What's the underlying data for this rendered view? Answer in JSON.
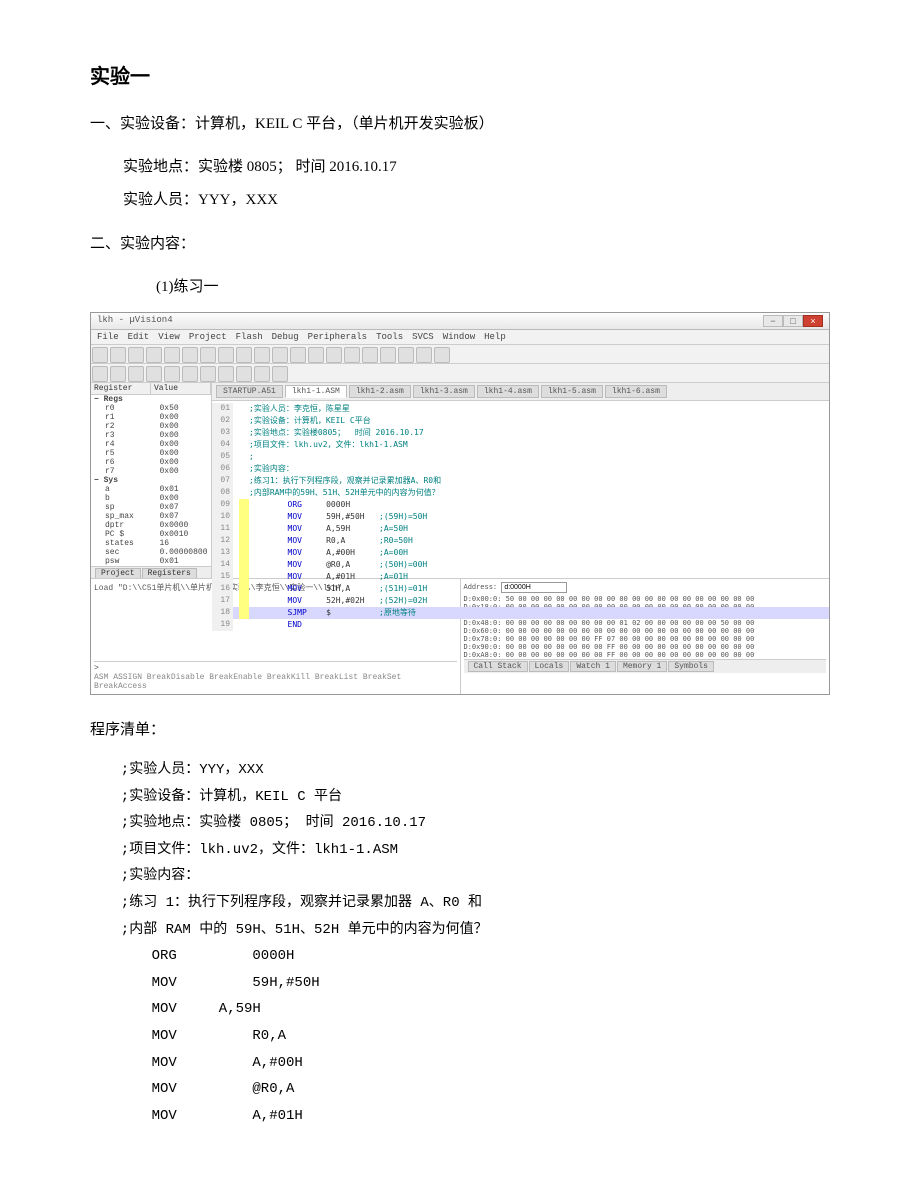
{
  "doc": {
    "title": "实验一",
    "sec1_label": "一、实验设备：",
    "equip": "计算机，KEIL C 平台，（单片机开发实验板）",
    "loc_label": "实验地点：",
    "loc": "实验楼 0805；  时间 2016.10.17",
    "people_label": "实验人员：",
    "people": "YYY，XXX",
    "sec2_label": "二、实验内容：",
    "ex1": "(1)练习一",
    "listing_title": "程序清单：",
    "l1": ";实验人员：YYY，XXX",
    "l2": ";实验设备：计算机，KEIL C 平台",
    "l3": ";实验地点：实验楼 0805；  时间 2016.10.17",
    "l4": ";项目文件：lkh.uv2，文件：lkh1-1.ASM",
    "l5": ";实验内容：",
    "l6": ";练习 1：执行下列程序段，观察并记录累加器 A、R0 和",
    "l7": ";内部 RAM 中的 59H、51H、52H 单元中的内容为何值？",
    "asm": [
      "ORG         0000H",
      "MOV         59H,#50H",
      "MOV     A,59H",
      "MOV         R0,A",
      "MOV         A,#00H",
      "MOV         @R0,A",
      "MOV         A,#01H"
    ]
  },
  "ide": {
    "title": "lkh - µVision4",
    "menus": [
      "File",
      "Edit",
      "View",
      "Project",
      "Flash",
      "Debug",
      "Peripherals",
      "Tools",
      "SVCS",
      "Window",
      "Help"
    ],
    "reg_hdr": [
      "Register",
      "Value"
    ],
    "regs": [
      [
        "r0",
        "0x50"
      ],
      [
        "r1",
        "0x00"
      ],
      [
        "r2",
        "0x00"
      ],
      [
        "r3",
        "0x00"
      ],
      [
        "r4",
        "0x00"
      ],
      [
        "r5",
        "0x00"
      ],
      [
        "r6",
        "0x00"
      ],
      [
        "r7",
        "0x00"
      ]
    ],
    "sys": [
      [
        "a",
        "0x01"
      ],
      [
        "b",
        "0x00"
      ],
      [
        "sp",
        "0x07"
      ],
      [
        "sp_max",
        "0x07"
      ],
      [
        "dptr",
        "0x0000"
      ],
      [
        "PC $",
        "0x0010"
      ],
      [
        "states",
        "16"
      ],
      [
        "sec",
        "0.00000800"
      ],
      [
        "psw",
        "0x01"
      ]
    ],
    "tabs": [
      "STARTUP.A51",
      "lkh1-1.ASM",
      "lkh1-2.asm",
      "lkh1-3.asm",
      "lkh1-4.asm",
      "lkh1-5.asm",
      "lkh1-6.asm"
    ],
    "code": [
      {
        "n": "01",
        "t": ";实验人员：李克恒，陈星星",
        "c": 1
      },
      {
        "n": "02",
        "t": ";实验设备：计算机，KEIL C平台",
        "c": 1
      },
      {
        "n": "03",
        "t": ";实验地点：实验楼0805；  时间 2016.10.17",
        "c": 1
      },
      {
        "n": "04",
        "t": ";项目文件：lkh.uv2，文件：lkh1-1.ASM",
        "c": 1
      },
      {
        "n": "05",
        "t": ";",
        "c": 1
      },
      {
        "n": "06",
        "t": ";实验内容：",
        "c": 1
      },
      {
        "n": "07",
        "t": ";练习1：执行下列程序段，观察并记录累加器A、R0和",
        "c": 1
      },
      {
        "n": "08",
        "t": ";内部RAM中的59H、51H、52H单元中的内容为何值？",
        "c": 1
      },
      {
        "n": "09",
        "t": "        ORG     0000H",
        "c": 0,
        "g": 1
      },
      {
        "n": "10",
        "t": "        MOV     59H,#50H   ;(59H)=50H",
        "c": 0,
        "g": 1
      },
      {
        "n": "11",
        "t": "        MOV     A,59H      ;A=50H",
        "c": 0,
        "g": 1
      },
      {
        "n": "12",
        "t": "        MOV     R0,A       ;R0=50H",
        "c": 0,
        "g": 1
      },
      {
        "n": "13",
        "t": "        MOV     A,#00H     ;A=00H",
        "c": 0,
        "g": 1
      },
      {
        "n": "14",
        "t": "        MOV     @R0,A      ;(50H)=00H",
        "c": 0,
        "g": 1
      },
      {
        "n": "15",
        "t": "        MOV     A,#01H     ;A=01H",
        "c": 0,
        "g": 1
      },
      {
        "n": "16",
        "t": "        MOV     51H,A      ;(51H)=01H",
        "c": 0,
        "g": 1
      },
      {
        "n": "17",
        "t": "        MOV     52H,#02H   ;(52H)=02H",
        "c": 0,
        "g": 1
      },
      {
        "n": "18",
        "t": "        SJMP    $          ;原地等待",
        "c": 0,
        "hl": 1,
        "g": 1
      },
      {
        "n": "19",
        "t": "        END",
        "c": 0
      }
    ],
    "cmd_load": "Load \"D:\\\\C51单片机\\\\单片机课程实验\\\\李克恒\\\\实验一\\\\lkh\"",
    "cmd_bottom": "ASM ASSIGN BreakDisable BreakEnable BreakKill BreakList BreakSet BreakAccess",
    "addr_label": "Address:",
    "addr": "d:0000H",
    "mem": [
      "D:0x00:0: 50 00 00 00 00 00 00 00 00 00 00 00 00 00 00 00 00 00 00 00",
      "D:0x18:0: 00 00 00 00 00 00 00 00 00 00 00 00 00 00 00 00 00 00 00 00",
      "D:0x30:0: 00 00 00 00 00 00 00 00 00 00 00 00 00 00 00 00 00 00 00 00",
      "D:0x48:0: 00 00 00 00 00 00 00 00 00 01 02 00 00 00 00 00 00 50 00 00",
      "D:0x60:0: 00 00 00 00 00 00 00 00 00 00 00 00 00 00 00 00 00 00 00 00",
      "D:0x78:0: 00 00 00 00 00 00 00 FF 07 00 00 00 00 00 00 00 00 00 00 00",
      "D:0x90:0: 00 00 00 00 00 00 00 00 FF 00 00 00 00 00 00 00 00 00 00 00",
      "D:0xA8:0: 00 00 00 00 00 00 00 00 FF 00 00 00 00 00 00 00 00 00 00 00"
    ],
    "bottom_tabs": [
      "Call Stack",
      "Locals",
      "Watch 1",
      "Memory 1",
      "Symbols"
    ],
    "reg_tab": [
      "Project",
      "Registers"
    ]
  }
}
